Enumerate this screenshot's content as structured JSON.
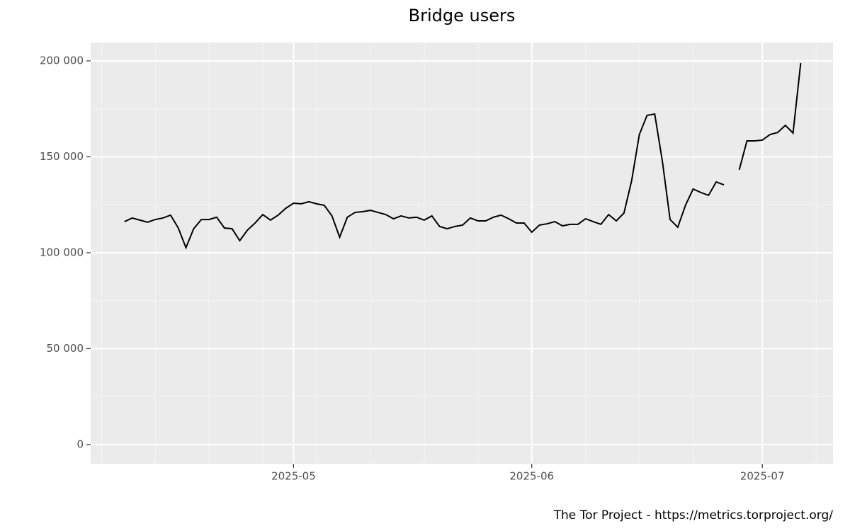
{
  "chart_data": {
    "type": "line",
    "title": "Bridge users",
    "caption": "The Tor Project - https://metrics.torproject.org/",
    "series": [
      {
        "name": "Bridge users",
        "color": "#000000",
        "values": [
          116200,
          118100,
          117000,
          115900,
          117300,
          118100,
          119600,
          112900,
          102600,
          112500,
          117300,
          117300,
          118500,
          112900,
          112500,
          106300,
          111800,
          115500,
          119900,
          117000,
          119600,
          123200,
          125800,
          125500,
          126600,
          125500,
          124700,
          119200,
          108100,
          118500,
          121000,
          121400,
          122100,
          121000,
          119900,
          117700,
          119200,
          118100,
          118500,
          117000,
          119200,
          113700,
          112500,
          113700,
          114400,
          118100,
          116600,
          116600,
          118500,
          119600,
          117700,
          115500,
          115500,
          110700,
          114400,
          115100,
          116200,
          114000,
          114800,
          114800,
          117700,
          116200,
          114800,
          119900,
          116600,
          120700,
          137600,
          161600,
          171600,
          172300,
          147600,
          117300,
          113300,
          124700,
          133200,
          131400,
          129900,
          136900,
          135400,
          null,
          143200,
          158300,
          158300,
          158700,
          161600,
          162700,
          166400,
          162400,
          198900
        ]
      }
    ],
    "xlim": [
      -4.4,
      92.2
    ],
    "xticks": [
      {
        "value": 22,
        "label": "2025-05"
      },
      {
        "value": 53,
        "label": "2025-06"
      },
      {
        "value": 83,
        "label": "2025-07"
      }
    ],
    "x_minor_ticks": [
      -3,
      4,
      11,
      18,
      25,
      32,
      39,
      46,
      60,
      67,
      74,
      90
    ],
    "ylim": [
      -10000,
      209600
    ],
    "yticks": [
      0,
      {
        "value": 50000,
        "label": "50 000"
      },
      {
        "value": 100000,
        "label": "100 000"
      },
      {
        "value": 150000,
        "label": "150 000"
      },
      {
        "value": 200000,
        "label": "200 000"
      }
    ],
    "y_minor_ticks": [
      25000,
      75000,
      125000,
      175000
    ],
    "grid": true
  }
}
